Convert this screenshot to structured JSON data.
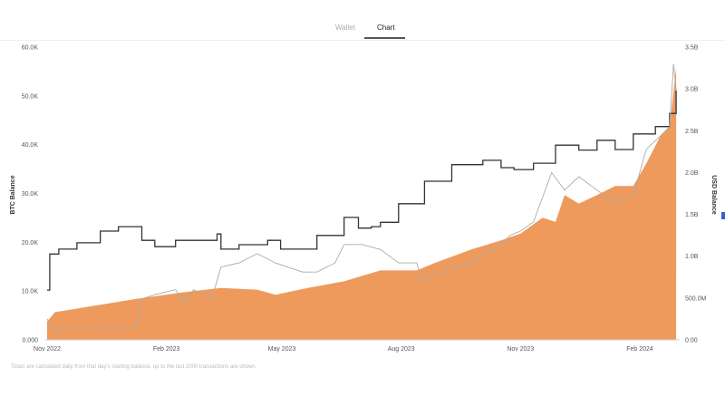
{
  "tabs": [
    {
      "label": "Wallet",
      "active": false
    },
    {
      "label": "Chart",
      "active": true
    }
  ],
  "footnote": "Totals are calculated daily from that day's starting balance, up to the last 2000 transactions are shown.",
  "chart_data": {
    "type": "line",
    "left_axis": {
      "label": "BTC Balance",
      "ylim": [
        0,
        60000
      ],
      "ticks": [
        "0.000",
        "10.0K",
        "20.0K",
        "30.0K",
        "40.0K",
        "50.0K",
        "60.0K"
      ]
    },
    "right_axis": {
      "label": "USD Balance",
      "ylim": [
        0,
        3.5
      ],
      "unit": "B",
      "ticks": [
        "0.00",
        "500.0M",
        "1.0B",
        "1.5B",
        "2.0B",
        "2.5B",
        "3.0B",
        "3.5B"
      ]
    },
    "x_axis": {
      "type": "date",
      "ticks": [
        "Nov 2022",
        "Feb 2023",
        "May 2023",
        "Aug 2023",
        "Nov 2023",
        "Feb 2024"
      ]
    },
    "grid": false,
    "colors": {
      "btc_line": "#333333",
      "grey_line": "#aaaaaa",
      "area": "#ee9a5c"
    },
    "series": [
      {
        "axis": "left",
        "style": "step-line",
        "color": "#333333",
        "x": [
          "2022-11-01",
          "2022-11-03",
          "2022-11-10",
          "2022-11-24",
          "2022-12-12",
          "2022-12-26",
          "2023-01-09",
          "2023-01-13",
          "2023-01-23",
          "2023-02-08",
          "2023-02-22",
          "2023-03-12",
          "2023-03-15",
          "2023-03-29",
          "2023-04-20",
          "2023-04-30",
          "2023-05-21",
          "2023-05-28",
          "2023-06-18",
          "2023-06-29",
          "2023-07-09",
          "2023-07-16",
          "2023-07-30",
          "2023-08-19",
          "2023-09-09",
          "2023-10-03",
          "2023-10-17",
          "2023-10-27",
          "2023-11-11",
          "2023-11-21",
          "2023-11-28",
          "2023-12-16",
          "2023-12-30",
          "2024-01-13",
          "2024-01-27",
          "2024-02-13",
          "2024-02-24",
          "2024-02-29"
        ],
        "y": [
          10200,
          17600,
          18600,
          19900,
          22300,
          23200,
          23200,
          20400,
          19100,
          20400,
          20400,
          21700,
          18600,
          19500,
          20400,
          18600,
          18600,
          21400,
          25100,
          22900,
          23200,
          24100,
          27900,
          32500,
          35900,
          36800,
          35300,
          34900,
          36200,
          36200,
          39900,
          38900,
          40900,
          39000,
          42200,
          43700,
          46400,
          51100
        ]
      },
      {
        "axis": "right",
        "style": "line",
        "color": "#aaaaaa",
        "x": [
          "2022-11-01",
          "2022-11-07",
          "2022-12-04",
          "2023-01-09",
          "2023-01-13",
          "2023-01-23",
          "2023-02-08",
          "2023-02-15",
          "2023-02-22",
          "2023-03-08",
          "2023-03-15",
          "2023-03-29",
          "2023-04-12",
          "2023-04-26",
          "2023-05-17",
          "2023-05-28",
          "2023-06-11",
          "2023-06-18",
          "2023-07-02",
          "2023-07-16",
          "2023-07-30",
          "2023-08-13",
          "2023-08-17",
          "2023-08-27",
          "2023-09-24",
          "2023-10-17",
          "2023-10-24",
          "2023-11-01",
          "2023-11-11",
          "2023-11-25",
          "2023-12-05",
          "2023-12-16",
          "2023-12-30",
          "2024-01-13",
          "2024-01-27",
          "2024-02-06",
          "2024-02-17",
          "2024-02-24",
          "2024-02-27",
          "2024-02-29"
        ],
        "y": [
          0.25,
          0.11,
          0.14,
          0.16,
          0.49,
          0.54,
          0.6,
          0.43,
          0.6,
          0.49,
          0.87,
          0.92,
          1.03,
          0.92,
          0.81,
          0.81,
          0.92,
          1.14,
          1.14,
          1.08,
          0.92,
          0.92,
          0.7,
          0.78,
          0.92,
          1.14,
          1.25,
          1.3,
          1.41,
          2.0,
          1.79,
          1.95,
          1.79,
          1.63,
          1.73,
          2.28,
          2.44,
          2.55,
          3.3,
          2.98
        ]
      },
      {
        "axis": "right",
        "style": "area",
        "color": "#ee9a5c",
        "x": [
          "2022-11-01",
          "2022-11-07",
          "2022-12-04",
          "2023-01-09",
          "2023-02-15",
          "2023-03-15",
          "2023-04-12",
          "2023-04-26",
          "2023-05-21",
          "2023-06-18",
          "2023-07-16",
          "2023-08-13",
          "2023-08-27",
          "2023-09-24",
          "2023-10-17",
          "2023-11-01",
          "2023-11-18",
          "2023-11-28",
          "2023-12-05",
          "2023-12-16",
          "2023-12-30",
          "2024-01-13",
          "2024-01-27",
          "2024-02-06",
          "2024-02-17",
          "2024-02-24",
          "2024-02-29"
        ],
        "y": [
          0.22,
          0.33,
          0.4,
          0.49,
          0.57,
          0.62,
          0.6,
          0.54,
          0.62,
          0.7,
          0.83,
          0.83,
          0.92,
          1.08,
          1.19,
          1.27,
          1.46,
          1.41,
          1.73,
          1.63,
          1.73,
          1.84,
          1.84,
          2.11,
          2.44,
          2.55,
          3.25
        ]
      }
    ]
  }
}
